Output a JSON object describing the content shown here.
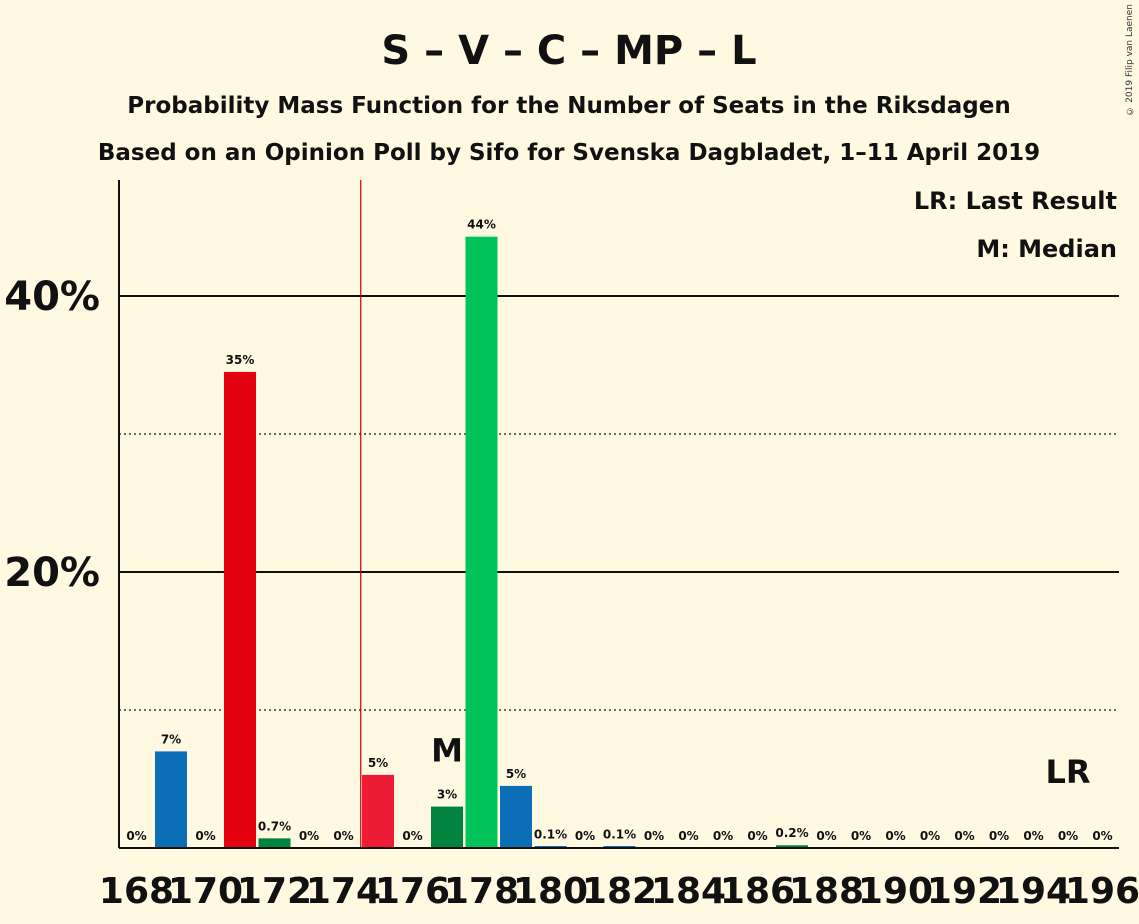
{
  "copyright": "© 2019 Filip van Laenen",
  "chart_data": {
    "type": "bar",
    "title": "S – V – C – MP – L",
    "subtitle": "Probability Mass Function for the Number of Seats in the Riksdagen",
    "subtitle2": "Based on an Opinion Poll by Sifo for Svenska Dagbladet, 1–11 April 2019",
    "legend": [
      "LR: Last Result",
      "M: Median"
    ],
    "ylim": [
      0,
      48
    ],
    "y_ticks": [
      {
        "value": 20,
        "label": "20%"
      },
      {
        "value": 40,
        "label": "40%"
      }
    ],
    "y_minor_gridlines": [
      10,
      30
    ],
    "x_ticks": [
      "168",
      "170",
      "172",
      "174",
      "176",
      "178",
      "180",
      "182",
      "184",
      "186",
      "188",
      "190",
      "192",
      "194",
      "196"
    ],
    "bars": [
      {
        "seats": 168,
        "value": 0,
        "label": "0%",
        "color": "#0b6eb6"
      },
      {
        "seats": 169,
        "value": 7.0,
        "label": "7%",
        "color": "#0b6eb6"
      },
      {
        "seats": 170,
        "value": 0,
        "label": "0%",
        "color": "#e3000f"
      },
      {
        "seats": 171,
        "value": 34.5,
        "label": "35%",
        "color": "#e3000f"
      },
      {
        "seats": 172,
        "value": 0.7,
        "label": "0.7%",
        "color": "#00843d"
      },
      {
        "seats": 173,
        "value": 0,
        "label": "0%",
        "color": "#00843d"
      },
      {
        "seats": 174,
        "value": 0,
        "label": "0%",
        "color": "#ed1b34"
      },
      {
        "seats": 175,
        "value": 5.3,
        "label": "5%",
        "color": "#ed1b34"
      },
      {
        "seats": 176,
        "value": 0,
        "label": "0%",
        "color": "#00843d"
      },
      {
        "seats": 177,
        "value": 3.0,
        "label": "3%",
        "color": "#00843d"
      },
      {
        "seats": 178,
        "value": 44.3,
        "label": "44%",
        "color": "#00c35a"
      },
      {
        "seats": 179,
        "value": 4.5,
        "label": "5%",
        "color": "#0b6eb6"
      },
      {
        "seats": 180,
        "value": 0.1,
        "label": "0.1%",
        "color": "#0b6eb6"
      },
      {
        "seats": 181,
        "value": 0,
        "label": "0%",
        "color": "#0b6eb6"
      },
      {
        "seats": 182,
        "value": 0.1,
        "label": "0.1%",
        "color": "#0b6eb6"
      },
      {
        "seats": 183,
        "value": 0,
        "label": "0%",
        "color": "#0b6eb6"
      },
      {
        "seats": 184,
        "value": 0,
        "label": "0%",
        "color": "#0b6eb6"
      },
      {
        "seats": 185,
        "value": 0,
        "label": "0%",
        "color": "#0b6eb6"
      },
      {
        "seats": 186,
        "value": 0,
        "label": "0%",
        "color": "#0b6eb6"
      },
      {
        "seats": 187,
        "value": 0.2,
        "label": "0.2%",
        "color": "#00843d"
      },
      {
        "seats": 188,
        "value": 0,
        "label": "0%",
        "color": "#00843d"
      },
      {
        "seats": 189,
        "value": 0,
        "label": "0%",
        "color": "#00843d"
      },
      {
        "seats": 190,
        "value": 0,
        "label": "0%",
        "color": "#00843d"
      },
      {
        "seats": 191,
        "value": 0,
        "label": "0%",
        "color": "#00843d"
      },
      {
        "seats": 192,
        "value": 0,
        "label": "0%",
        "color": "#00843d"
      },
      {
        "seats": 193,
        "value": 0,
        "label": "0%",
        "color": "#00843d"
      },
      {
        "seats": 194,
        "value": 0,
        "label": "0%",
        "color": "#00843d"
      },
      {
        "seats": 195,
        "value": 0,
        "label": "0%",
        "color": "#00843d"
      },
      {
        "seats": 196,
        "value": 0,
        "label": "0%",
        "color": "#00843d"
      }
    ],
    "median": {
      "seats": 177,
      "label": "M"
    },
    "last_result": {
      "seats": 195,
      "label": "LR"
    },
    "majority_line": {
      "seats": 174.5,
      "color": "#c00000"
    }
  }
}
